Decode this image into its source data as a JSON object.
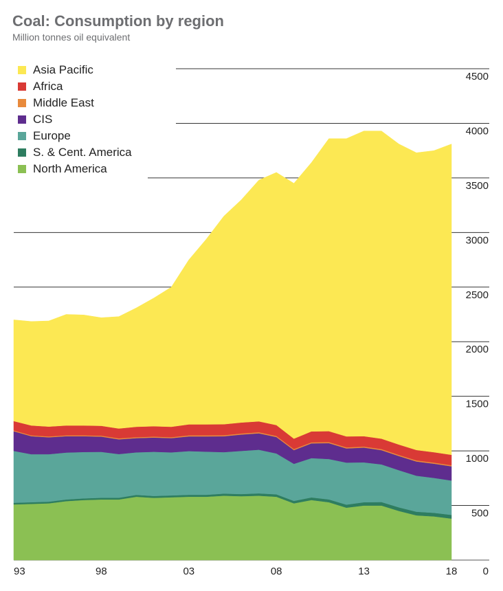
{
  "header": {
    "title": "Coal: Consumption by region",
    "subtitle": "Million tonnes oil equivalent"
  },
  "chart_data": {
    "type": "area",
    "stacked": true,
    "title": "Coal: Consumption by region",
    "ylabel": "Million tonnes oil equivalent",
    "ylim": [
      0,
      4500
    ],
    "yticks": [
      "0",
      "500",
      "1000",
      "1500",
      "2000",
      "2500",
      "3000",
      "3500",
      "4000",
      "4500"
    ],
    "xticks": [
      "93",
      "98",
      "03",
      "08",
      "13",
      "18"
    ],
    "x": [
      1993,
      1994,
      1995,
      1996,
      1997,
      1998,
      1999,
      2000,
      2001,
      2002,
      2003,
      2004,
      2005,
      2006,
      2007,
      2008,
      2009,
      2010,
      2011,
      2012,
      2013,
      2014,
      2015,
      2016,
      2017,
      2018
    ],
    "legend_position": "top-left",
    "grid": true,
    "series": [
      {
        "name": "North America",
        "color": "#8bc053",
        "values": [
          510,
          515,
          520,
          540,
          550,
          555,
          555,
          580,
          570,
          575,
          580,
          580,
          590,
          585,
          590,
          580,
          520,
          550,
          530,
          480,
          500,
          500,
          450,
          410,
          400,
          380
        ]
      },
      {
        "name": "S. & Cent. America",
        "color": "#2e7d60",
        "values": [
          15,
          15,
          15,
          15,
          15,
          16,
          16,
          17,
          17,
          17,
          18,
          18,
          19,
          20,
          21,
          22,
          22,
          24,
          26,
          28,
          30,
          32,
          33,
          33,
          33,
          34
        ]
      },
      {
        "name": "Europe",
        "color": "#5aa69a",
        "values": [
          475,
          440,
          435,
          430,
          425,
          420,
          400,
          390,
          405,
          395,
          400,
          395,
          380,
          395,
          400,
          375,
          340,
          360,
          370,
          385,
          365,
          345,
          340,
          330,
          320,
          315
        ]
      },
      {
        "name": "CIS",
        "color": "#5e2d8e",
        "values": [
          180,
          165,
          155,
          150,
          145,
          140,
          135,
          130,
          130,
          130,
          135,
          140,
          145,
          150,
          150,
          150,
          125,
          135,
          145,
          130,
          135,
          130,
          130,
          130,
          130,
          130
        ]
      },
      {
        "name": "Middle East",
        "color": "#e88a3c",
        "values": [
          8,
          8,
          8,
          8,
          8,
          9,
          9,
          9,
          9,
          9,
          10,
          10,
          10,
          10,
          10,
          10,
          10,
          10,
          10,
          10,
          10,
          10,
          10,
          10,
          10,
          10
        ]
      },
      {
        "name": "Africa",
        "color": "#d93a35",
        "values": [
          85,
          90,
          90,
          90,
          90,
          90,
          90,
          95,
          95,
          95,
          100,
          100,
          100,
          100,
          100,
          100,
          95,
          100,
          100,
          100,
          95,
          95,
          95,
          95,
          95,
          95
        ]
      },
      {
        "name": "Asia Pacific",
        "color": "#fce853",
        "values": [
          927,
          952,
          967,
          1017,
          1012,
          990,
          1025,
          1089,
          1174,
          1279,
          1507,
          1697,
          1906,
          2040,
          2209,
          2313,
          2338,
          2461,
          2679,
          2727,
          2795,
          2818,
          2752,
          2722,
          2762,
          2846
        ]
      }
    ]
  }
}
